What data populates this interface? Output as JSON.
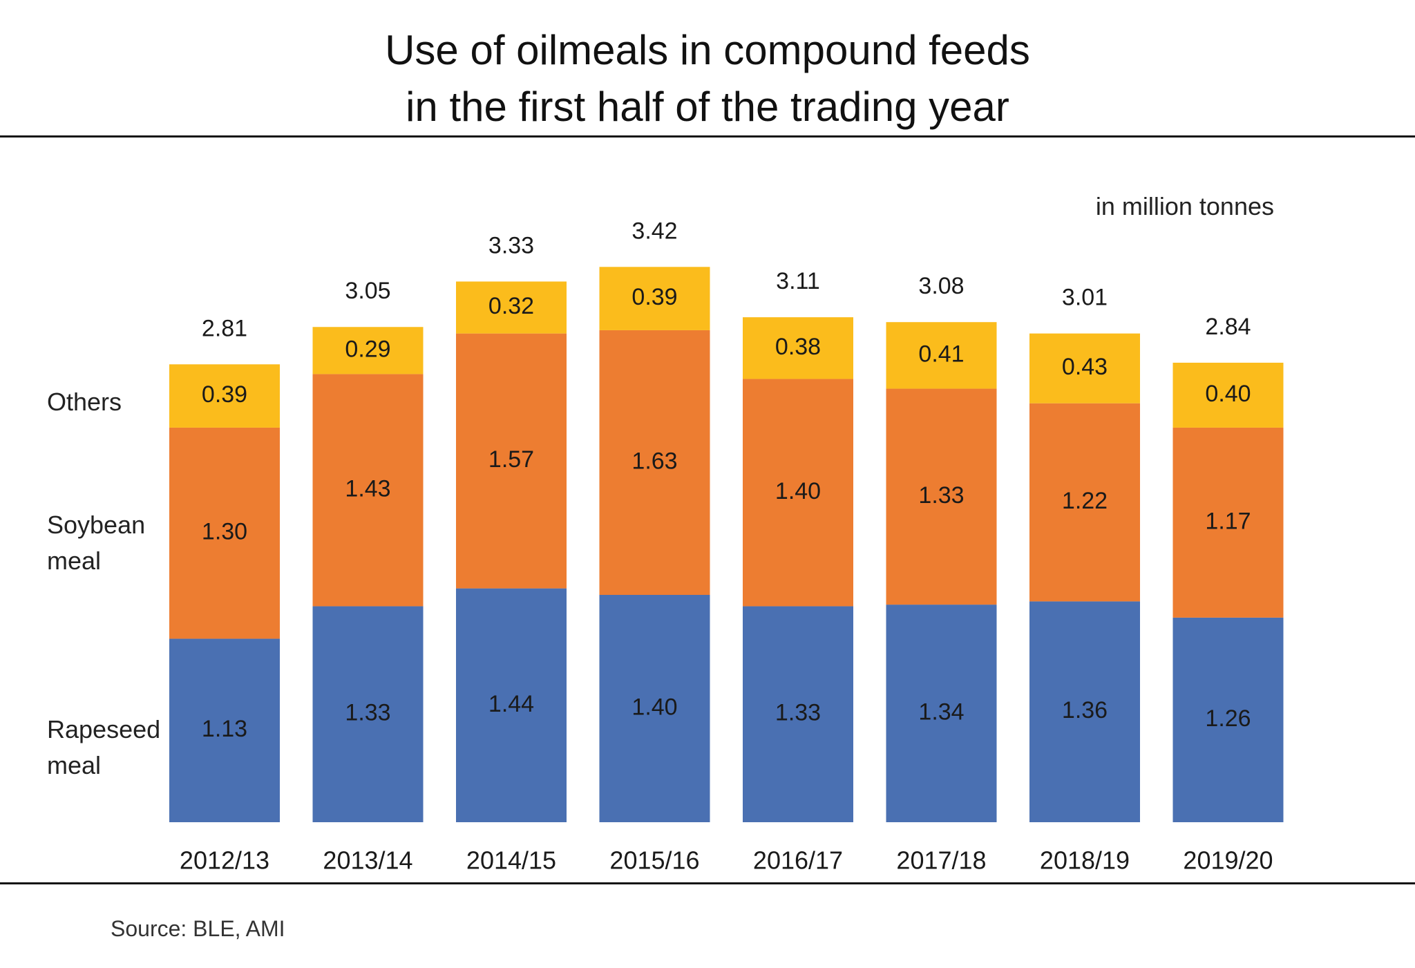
{
  "title_line1": "Use of oilmeals in compound feeds",
  "title_line2": "in the first half of the trading year",
  "unit_label": "in million tonnes",
  "source": "Source: BLE, AMI",
  "series_labels": {
    "others": "Others",
    "soybean": "Soybean\nmeal",
    "rapeseed": "Rapeseed\nmeal"
  },
  "colors": {
    "rapeseed": "#4a70b2",
    "soybean": "#ed7d31",
    "others": "#fbbc1c"
  },
  "chart_data": {
    "type": "bar",
    "stacked": true,
    "title": "Use of oilmeals in compound feeds in the first half of the trading year",
    "ylabel": "in million tonnes",
    "categories": [
      "2012/13",
      "2013/14",
      "2014/15",
      "2015/16",
      "2016/17",
      "2017/18",
      "2018/19",
      "2019/20"
    ],
    "series": [
      {
        "name": "Rapeseed meal",
        "values": [
          1.13,
          1.33,
          1.44,
          1.4,
          1.33,
          1.34,
          1.36,
          1.26
        ]
      },
      {
        "name": "Soybean meal",
        "values": [
          1.3,
          1.43,
          1.57,
          1.63,
          1.4,
          1.33,
          1.22,
          1.17
        ]
      },
      {
        "name": "Others",
        "values": [
          0.39,
          0.29,
          0.32,
          0.39,
          0.38,
          0.41,
          0.43,
          0.4
        ]
      }
    ],
    "totals": [
      2.81,
      3.05,
      3.33,
      3.42,
      3.11,
      3.08,
      3.01,
      2.84
    ],
    "ylim": [
      0,
      3.42
    ],
    "grid": false,
    "legend": "left"
  }
}
